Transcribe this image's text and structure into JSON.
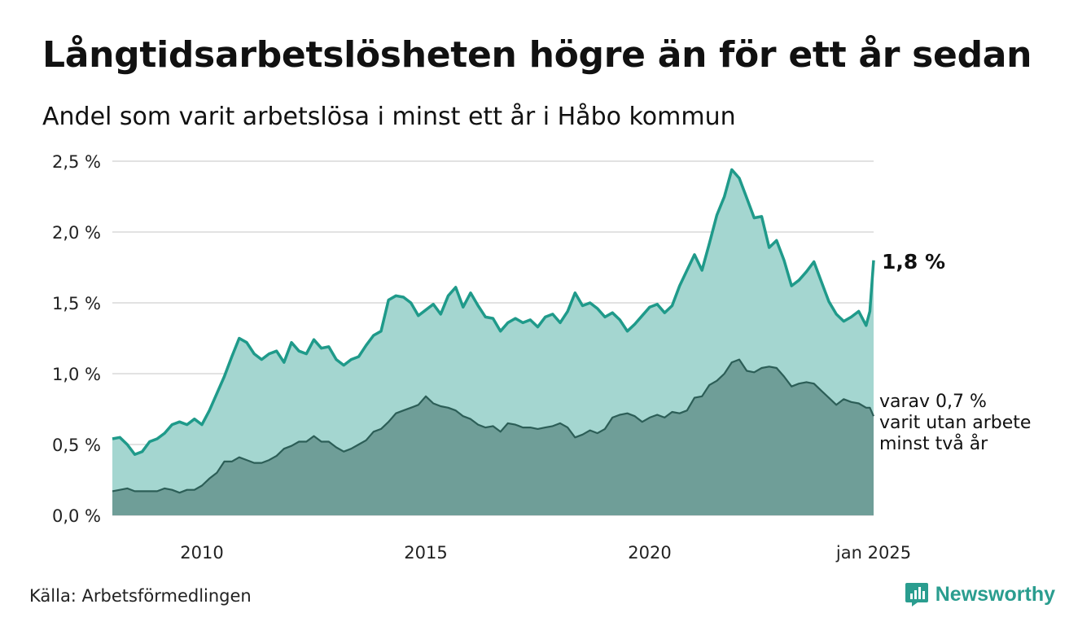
{
  "title": "Långtidsarbetslösheten högre än för ett år sedan",
  "subtitle": "Andel som varit arbetslösa i minst ett år i Håbo kommun",
  "source": "Källa: Arbetsförmedlingen",
  "brand": {
    "name": "Newsworthy",
    "icon": "newsworthy-logo-icon",
    "color": "#2a9d8f"
  },
  "chart_data": {
    "type": "area",
    "x_range": [
      "2008-01",
      "2025-01"
    ],
    "ylim": [
      0,
      2.5
    ],
    "y_ticks": [
      {
        "value": 0.0,
        "label": "0,0 %"
      },
      {
        "value": 0.5,
        "label": "0,5 %"
      },
      {
        "value": 1.0,
        "label": "1,0 %"
      },
      {
        "value": 1.5,
        "label": "1,5 %"
      },
      {
        "value": 2.0,
        "label": "2,0 %"
      },
      {
        "value": 2.5,
        "label": "2,5 %"
      }
    ],
    "x_ticks": [
      {
        "value": "2010-01",
        "label": "2010"
      },
      {
        "value": "2015-01",
        "label": "2015"
      },
      {
        "value": "2020-01",
        "label": "2020"
      },
      {
        "value": "2025-01",
        "label": "jan 2025"
      }
    ],
    "grid": true,
    "legend": "none",
    "series": [
      {
        "key": "min1yr",
        "color": "#1f9a8a",
        "fill": "#a4d6d0",
        "end_label": "1,8 %",
        "points": [
          [
            "2008-01",
            0.54
          ],
          [
            "2008-03",
            0.55
          ],
          [
            "2008-05",
            0.5
          ],
          [
            "2008-07",
            0.43
          ],
          [
            "2008-09",
            0.45
          ],
          [
            "2008-11",
            0.52
          ],
          [
            "2009-01",
            0.54
          ],
          [
            "2009-03",
            0.58
          ],
          [
            "2009-05",
            0.64
          ],
          [
            "2009-07",
            0.66
          ],
          [
            "2009-09",
            0.64
          ],
          [
            "2009-11",
            0.68
          ],
          [
            "2010-01",
            0.64
          ],
          [
            "2010-03",
            0.74
          ],
          [
            "2010-05",
            0.86
          ],
          [
            "2010-07",
            0.98
          ],
          [
            "2010-09",
            1.12
          ],
          [
            "2010-11",
            1.25
          ],
          [
            "2011-01",
            1.22
          ],
          [
            "2011-03",
            1.14
          ],
          [
            "2011-05",
            1.1
          ],
          [
            "2011-07",
            1.14
          ],
          [
            "2011-09",
            1.16
          ],
          [
            "2011-11",
            1.08
          ],
          [
            "2012-01",
            1.22
          ],
          [
            "2012-03",
            1.16
          ],
          [
            "2012-05",
            1.14
          ],
          [
            "2012-07",
            1.24
          ],
          [
            "2012-09",
            1.18
          ],
          [
            "2012-11",
            1.19
          ],
          [
            "2013-01",
            1.1
          ],
          [
            "2013-03",
            1.06
          ],
          [
            "2013-05",
            1.1
          ],
          [
            "2013-07",
            1.12
          ],
          [
            "2013-09",
            1.2
          ],
          [
            "2013-11",
            1.27
          ],
          [
            "2014-01",
            1.3
          ],
          [
            "2014-03",
            1.52
          ],
          [
            "2014-05",
            1.55
          ],
          [
            "2014-07",
            1.54
          ],
          [
            "2014-09",
            1.5
          ],
          [
            "2014-11",
            1.41
          ],
          [
            "2015-01",
            1.45
          ],
          [
            "2015-03",
            1.49
          ],
          [
            "2015-05",
            1.42
          ],
          [
            "2015-07",
            1.55
          ],
          [
            "2015-09",
            1.61
          ],
          [
            "2015-11",
            1.47
          ],
          [
            "2016-01",
            1.57
          ],
          [
            "2016-03",
            1.48
          ],
          [
            "2016-05",
            1.4
          ],
          [
            "2016-07",
            1.39
          ],
          [
            "2016-09",
            1.3
          ],
          [
            "2016-11",
            1.36
          ],
          [
            "2017-01",
            1.39
          ],
          [
            "2017-03",
            1.36
          ],
          [
            "2017-05",
            1.38
          ],
          [
            "2017-07",
            1.33
          ],
          [
            "2017-09",
            1.4
          ],
          [
            "2017-11",
            1.42
          ],
          [
            "2018-01",
            1.36
          ],
          [
            "2018-03",
            1.44
          ],
          [
            "2018-05",
            1.57
          ],
          [
            "2018-07",
            1.48
          ],
          [
            "2018-09",
            1.5
          ],
          [
            "2018-11",
            1.46
          ],
          [
            "2019-01",
            1.4
          ],
          [
            "2019-03",
            1.43
          ],
          [
            "2019-05",
            1.38
          ],
          [
            "2019-07",
            1.3
          ],
          [
            "2019-09",
            1.35
          ],
          [
            "2019-11",
            1.41
          ],
          [
            "2020-01",
            1.47
          ],
          [
            "2020-03",
            1.49
          ],
          [
            "2020-05",
            1.43
          ],
          [
            "2020-07",
            1.48
          ],
          [
            "2020-09",
            1.62
          ],
          [
            "2020-11",
            1.73
          ],
          [
            "2021-01",
            1.84
          ],
          [
            "2021-03",
            1.73
          ],
          [
            "2021-05",
            1.92
          ],
          [
            "2021-07",
            2.12
          ],
          [
            "2021-09",
            2.25
          ],
          [
            "2021-11",
            2.44
          ],
          [
            "2022-01",
            2.38
          ],
          [
            "2022-03",
            2.24
          ],
          [
            "2022-05",
            2.1
          ],
          [
            "2022-07",
            2.11
          ],
          [
            "2022-09",
            1.89
          ],
          [
            "2022-11",
            1.94
          ],
          [
            "2023-01",
            1.8
          ],
          [
            "2023-03",
            1.62
          ],
          [
            "2023-05",
            1.66
          ],
          [
            "2023-07",
            1.72
          ],
          [
            "2023-09",
            1.79
          ],
          [
            "2023-11",
            1.65
          ],
          [
            "2024-01",
            1.51
          ],
          [
            "2024-03",
            1.42
          ],
          [
            "2024-05",
            1.37
          ],
          [
            "2024-07",
            1.4
          ],
          [
            "2024-09",
            1.44
          ],
          [
            "2024-11",
            1.34
          ],
          [
            "2024-12",
            1.44
          ],
          [
            "2025-01",
            1.8
          ]
        ]
      },
      {
        "key": "min2yr",
        "color": "#2c5e57",
        "fill": "#6f9e98",
        "end_label": [
          "varav 0,7 %",
          "varit utan arbete",
          "minst två år"
        ],
        "points": [
          [
            "2008-01",
            0.17
          ],
          [
            "2008-03",
            0.18
          ],
          [
            "2008-05",
            0.19
          ],
          [
            "2008-07",
            0.17
          ],
          [
            "2008-09",
            0.17
          ],
          [
            "2008-11",
            0.17
          ],
          [
            "2009-01",
            0.17
          ],
          [
            "2009-03",
            0.19
          ],
          [
            "2009-05",
            0.18
          ],
          [
            "2009-07",
            0.16
          ],
          [
            "2009-09",
            0.18
          ],
          [
            "2009-11",
            0.18
          ],
          [
            "2010-01",
            0.21
          ],
          [
            "2010-03",
            0.26
          ],
          [
            "2010-05",
            0.3
          ],
          [
            "2010-07",
            0.38
          ],
          [
            "2010-09",
            0.38
          ],
          [
            "2010-11",
            0.41
          ],
          [
            "2011-01",
            0.39
          ],
          [
            "2011-03",
            0.37
          ],
          [
            "2011-05",
            0.37
          ],
          [
            "2011-07",
            0.39
          ],
          [
            "2011-09",
            0.42
          ],
          [
            "2011-11",
            0.47
          ],
          [
            "2012-01",
            0.49
          ],
          [
            "2012-03",
            0.52
          ],
          [
            "2012-05",
            0.52
          ],
          [
            "2012-07",
            0.56
          ],
          [
            "2012-09",
            0.52
          ],
          [
            "2012-11",
            0.52
          ],
          [
            "2013-01",
            0.48
          ],
          [
            "2013-03",
            0.45
          ],
          [
            "2013-05",
            0.47
          ],
          [
            "2013-07",
            0.5
          ],
          [
            "2013-09",
            0.53
          ],
          [
            "2013-11",
            0.59
          ],
          [
            "2014-01",
            0.61
          ],
          [
            "2014-03",
            0.66
          ],
          [
            "2014-05",
            0.72
          ],
          [
            "2014-07",
            0.74
          ],
          [
            "2014-09",
            0.76
          ],
          [
            "2014-11",
            0.78
          ],
          [
            "2015-01",
            0.84
          ],
          [
            "2015-03",
            0.79
          ],
          [
            "2015-05",
            0.77
          ],
          [
            "2015-07",
            0.76
          ],
          [
            "2015-09",
            0.74
          ],
          [
            "2015-11",
            0.7
          ],
          [
            "2016-01",
            0.68
          ],
          [
            "2016-03",
            0.64
          ],
          [
            "2016-05",
            0.62
          ],
          [
            "2016-07",
            0.63
          ],
          [
            "2016-09",
            0.59
          ],
          [
            "2016-11",
            0.65
          ],
          [
            "2017-01",
            0.64
          ],
          [
            "2017-03",
            0.62
          ],
          [
            "2017-05",
            0.62
          ],
          [
            "2017-07",
            0.61
          ],
          [
            "2017-09",
            0.62
          ],
          [
            "2017-11",
            0.63
          ],
          [
            "2018-01",
            0.65
          ],
          [
            "2018-03",
            0.62
          ],
          [
            "2018-05",
            0.55
          ],
          [
            "2018-07",
            0.57
          ],
          [
            "2018-09",
            0.6
          ],
          [
            "2018-11",
            0.58
          ],
          [
            "2019-01",
            0.61
          ],
          [
            "2019-03",
            0.69
          ],
          [
            "2019-05",
            0.71
          ],
          [
            "2019-07",
            0.72
          ],
          [
            "2019-09",
            0.7
          ],
          [
            "2019-11",
            0.66
          ],
          [
            "2020-01",
            0.69
          ],
          [
            "2020-03",
            0.71
          ],
          [
            "2020-05",
            0.69
          ],
          [
            "2020-07",
            0.73
          ],
          [
            "2020-09",
            0.72
          ],
          [
            "2020-11",
            0.74
          ],
          [
            "2021-01",
            0.83
          ],
          [
            "2021-03",
            0.84
          ],
          [
            "2021-05",
            0.92
          ],
          [
            "2021-07",
            0.95
          ],
          [
            "2021-09",
            1.0
          ],
          [
            "2021-11",
            1.08
          ],
          [
            "2022-01",
            1.1
          ],
          [
            "2022-03",
            1.02
          ],
          [
            "2022-05",
            1.01
          ],
          [
            "2022-07",
            1.04
          ],
          [
            "2022-09",
            1.05
          ],
          [
            "2022-11",
            1.04
          ],
          [
            "2023-01",
            0.98
          ],
          [
            "2023-03",
            0.91
          ],
          [
            "2023-05",
            0.93
          ],
          [
            "2023-07",
            0.94
          ],
          [
            "2023-09",
            0.93
          ],
          [
            "2023-11",
            0.88
          ],
          [
            "2024-01",
            0.83
          ],
          [
            "2024-03",
            0.78
          ],
          [
            "2024-05",
            0.82
          ],
          [
            "2024-07",
            0.8
          ],
          [
            "2024-09",
            0.79
          ],
          [
            "2024-11",
            0.76
          ],
          [
            "2024-12",
            0.76
          ],
          [
            "2025-01",
            0.7
          ]
        ]
      }
    ]
  }
}
